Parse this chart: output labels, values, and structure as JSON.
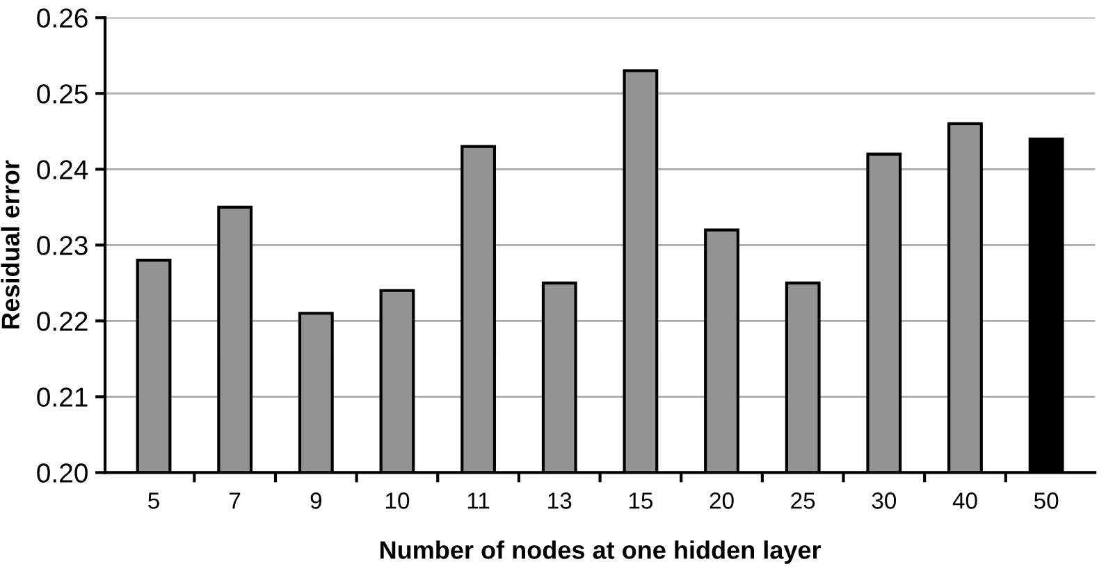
{
  "chart_data": {
    "type": "bar",
    "xlabel": "Number of nodes at one hidden layer",
    "ylabel": "Residual error",
    "categories": [
      "5",
      "7",
      "9",
      "10",
      "11",
      "13",
      "15",
      "20",
      "25",
      "30",
      "40",
      "50"
    ],
    "values": [
      0.228,
      0.235,
      0.221,
      0.224,
      0.243,
      0.225,
      0.253,
      0.232,
      0.225,
      0.242,
      0.246,
      0.244
    ],
    "colors": [
      "#939393",
      "#939393",
      "#939393",
      "#939393",
      "#939393",
      "#939393",
      "#939393",
      "#939393",
      "#939393",
      "#939393",
      "#939393",
      "#000000"
    ],
    "ylim": [
      0.2,
      0.26
    ],
    "yticks": [
      {
        "value": 0.2,
        "label": "0.20"
      },
      {
        "value": 0.21,
        "label": "0.21"
      },
      {
        "value": 0.22,
        "label": "0.22"
      },
      {
        "value": 0.23,
        "label": "0.23"
      },
      {
        "value": 0.24,
        "label": "0.24"
      },
      {
        "value": 0.25,
        "label": "0.25"
      },
      {
        "value": 0.26,
        "label": "0.26"
      }
    ],
    "grid": "y"
  }
}
